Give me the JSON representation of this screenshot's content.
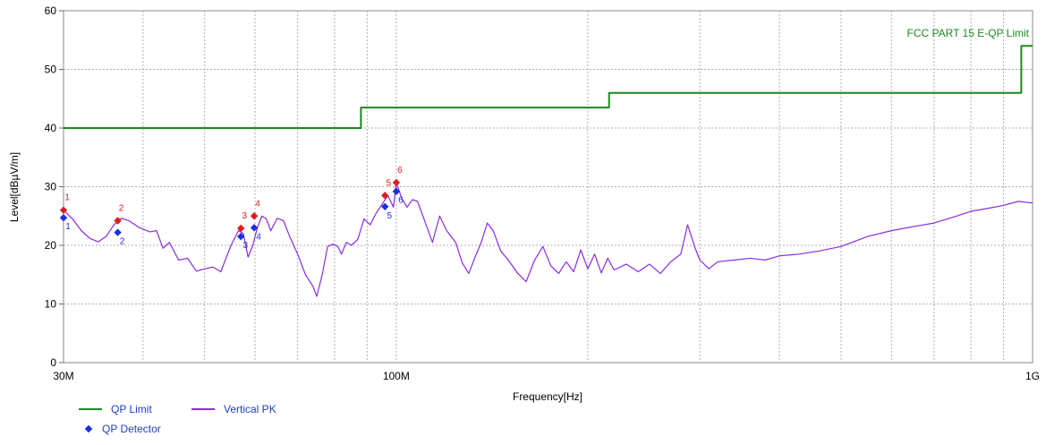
{
  "chart_data": {
    "type": "line",
    "ylabel": "Level[dBµV/m]",
    "xlabel": "Frequency[Hz]",
    "x_scale": "log",
    "xlim": [
      30000000,
      1000000000
    ],
    "ylim": [
      0,
      60
    ],
    "grid": true,
    "x_tick_labels": [
      {
        "value": 30000000,
        "label": "30M"
      },
      {
        "value": 100000000,
        "label": "100M"
      },
      {
        "value": 1000000000,
        "label": "1G"
      }
    ],
    "y_ticks": [
      0,
      10,
      20,
      30,
      40,
      50,
      60
    ],
    "limit_annotation": "FCC PART 15 E-QP Limit",
    "colors": {
      "limit": "#1e8a1e",
      "trace": "#8a2be2",
      "peak_marker": "#e21a1a",
      "qp_marker": "#1a2ee2",
      "axis_text": "#1f3fbf"
    },
    "series": [
      {
        "name": "QP Limit",
        "points": [
          [
            30000000,
            40
          ],
          [
            88000000,
            40
          ],
          [
            88000000,
            43.5
          ],
          [
            216000000,
            43.5
          ],
          [
            216000000,
            46
          ],
          [
            960000000,
            46
          ],
          [
            960000000,
            54
          ],
          [
            1000000000,
            54
          ]
        ]
      },
      {
        "name": "Vertical PK",
        "points": [
          [
            30000000,
            26
          ],
          [
            31000000,
            24.5
          ],
          [
            32000000,
            22.5
          ],
          [
            33000000,
            21.2
          ],
          [
            34000000,
            20.6
          ],
          [
            35000000,
            21.5
          ],
          [
            36000000,
            23.5
          ],
          [
            37000000,
            24.6
          ],
          [
            38000000,
            24.2
          ],
          [
            39500000,
            23
          ],
          [
            41000000,
            22.3
          ],
          [
            42000000,
            22.5
          ],
          [
            43000000,
            19.5
          ],
          [
            44000000,
            20.5
          ],
          [
            45500000,
            17.5
          ],
          [
            47000000,
            17.8
          ],
          [
            48500000,
            15.6
          ],
          [
            50000000,
            16
          ],
          [
            51500000,
            16.3
          ],
          [
            53000000,
            15.5
          ],
          [
            55000000,
            20
          ],
          [
            56500000,
            22.5
          ],
          [
            57500000,
            22
          ],
          [
            58500000,
            18
          ],
          [
            59500000,
            20
          ],
          [
            60500000,
            23
          ],
          [
            61500000,
            25
          ],
          [
            62500000,
            24.5
          ],
          [
            63500000,
            22.5
          ],
          [
            65000000,
            24.6
          ],
          [
            66500000,
            24.2
          ],
          [
            68000000,
            21.5
          ],
          [
            70000000,
            18.5
          ],
          [
            72000000,
            15
          ],
          [
            74000000,
            13
          ],
          [
            75000000,
            11.3
          ],
          [
            76500000,
            15
          ],
          [
            78000000,
            19.8
          ],
          [
            79500000,
            20.2
          ],
          [
            81000000,
            19.8
          ],
          [
            82000000,
            18.5
          ],
          [
            83500000,
            20.5
          ],
          [
            85000000,
            20
          ],
          [
            87000000,
            21
          ],
          [
            89000000,
            24.5
          ],
          [
            91000000,
            23.5
          ],
          [
            93000000,
            25.5
          ],
          [
            95000000,
            27
          ],
          [
            97000000,
            28.5
          ],
          [
            99000000,
            26.5
          ],
          [
            100000000,
            30.8
          ],
          [
            102000000,
            28
          ],
          [
            104000000,
            26.5
          ],
          [
            106000000,
            27.8
          ],
          [
            108000000,
            27.5
          ],
          [
            111000000,
            24
          ],
          [
            114000000,
            20.5
          ],
          [
            117000000,
            25
          ],
          [
            120000000,
            22.5
          ],
          [
            124000000,
            20.5
          ],
          [
            127000000,
            17
          ],
          [
            130000000,
            15.2
          ],
          [
            133000000,
            18
          ],
          [
            136000000,
            20.5
          ],
          [
            139000000,
            23.8
          ],
          [
            142000000,
            22.5
          ],
          [
            146000000,
            19
          ],
          [
            150000000,
            17.5
          ],
          [
            155000000,
            15.3
          ],
          [
            160000000,
            13.8
          ],
          [
            165000000,
            17.5
          ],
          [
            170000000,
            19.8
          ],
          [
            175000000,
            16.5
          ],
          [
            180000000,
            15.2
          ],
          [
            185000000,
            17.2
          ],
          [
            190000000,
            15.5
          ],
          [
            195000000,
            19.2
          ],
          [
            200000000,
            16
          ],
          [
            205000000,
            18.5
          ],
          [
            210000000,
            15.3
          ],
          [
            215000000,
            17.8
          ],
          [
            220000000,
            15.8
          ],
          [
            230000000,
            16.8
          ],
          [
            240000000,
            15.5
          ],
          [
            250000000,
            16.8
          ],
          [
            260000000,
            15.2
          ],
          [
            270000000,
            17.2
          ],
          [
            280000000,
            18.5
          ],
          [
            287000000,
            23.5
          ],
          [
            295000000,
            19.5
          ],
          [
            300000000,
            17.5
          ],
          [
            310000000,
            16
          ],
          [
            320000000,
            17.2
          ],
          [
            340000000,
            17.5
          ],
          [
            360000000,
            17.8
          ],
          [
            380000000,
            17.5
          ],
          [
            400000000,
            18.2
          ],
          [
            430000000,
            18.5
          ],
          [
            460000000,
            19
          ],
          [
            500000000,
            19.8
          ],
          [
            550000000,
            21.5
          ],
          [
            600000000,
            22.5
          ],
          [
            650000000,
            23.2
          ],
          [
            700000000,
            23.8
          ],
          [
            750000000,
            24.8
          ],
          [
            800000000,
            25.8
          ],
          [
            850000000,
            26.3
          ],
          [
            900000000,
            26.8
          ],
          [
            950000000,
            27.5
          ],
          [
            1000000000,
            27.2
          ]
        ]
      }
    ],
    "qp_detector_points": [
      {
        "label": "1",
        "x": 30000000,
        "y": 24.7
      },
      {
        "label": "2",
        "x": 36500000,
        "y": 22.2
      },
      {
        "label": "3",
        "x": 57000000,
        "y": 21.5
      },
      {
        "label": "4",
        "x": 59800000,
        "y": 23
      },
      {
        "label": "5",
        "x": 96000000,
        "y": 26.6
      },
      {
        "label": "6",
        "x": 100000000,
        "y": 29.2
      }
    ],
    "peak_markers": [
      {
        "label": "1",
        "x": 30000000,
        "y": 26
      },
      {
        "label": "2",
        "x": 36500000,
        "y": 24.2
      },
      {
        "label": "3",
        "x": 57000000,
        "y": 22.9
      },
      {
        "label": "4",
        "x": 59800000,
        "y": 25
      },
      {
        "label": "5",
        "x": 96000000,
        "y": 28.5
      },
      {
        "label": "6",
        "x": 100000000,
        "y": 30.7
      }
    ]
  },
  "legend": {
    "qp_limit": "QP Limit",
    "vertical_pk": "Vertical PK",
    "qp_detector": "QP Detector"
  }
}
